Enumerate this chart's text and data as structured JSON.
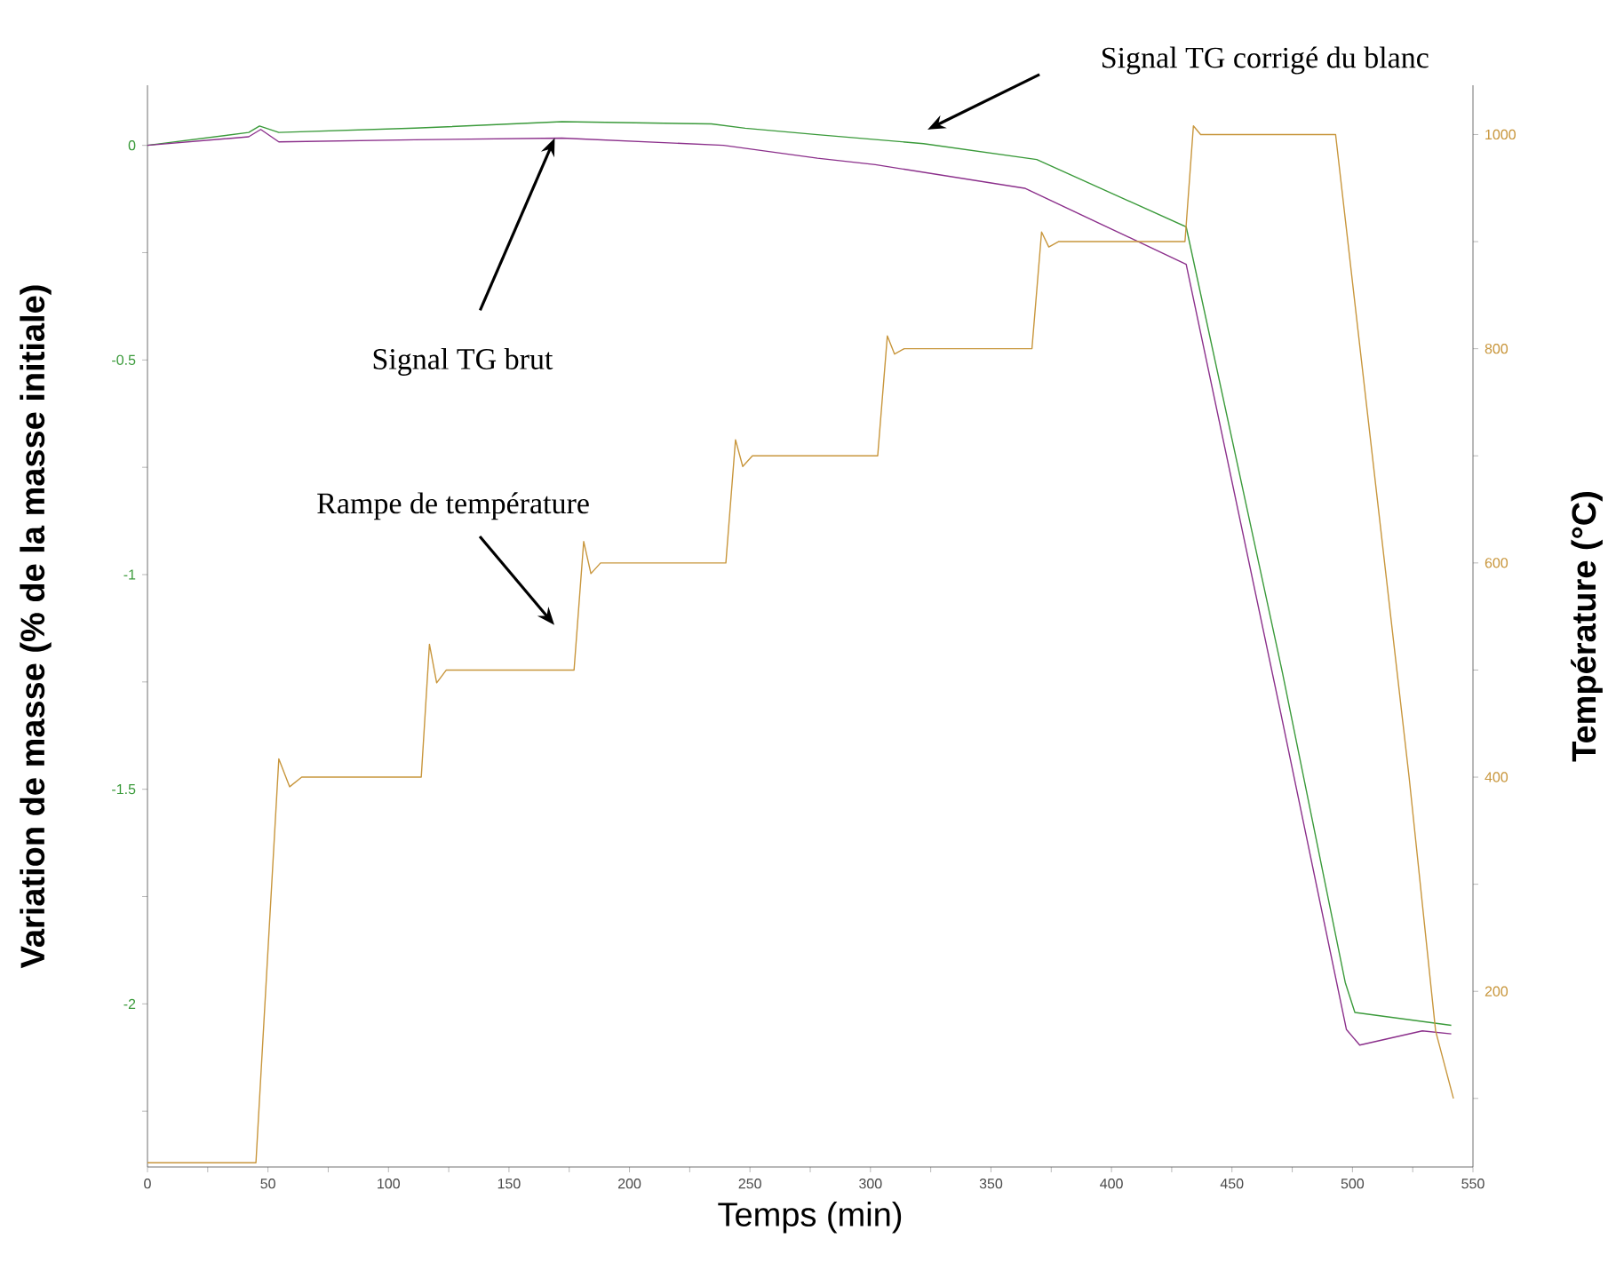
{
  "chart_data": {
    "type": "line",
    "xlabel": "Temps (min)",
    "ylabel": "Variation de masse (% de la masse initiale)",
    "y2label": "Température (°C)",
    "xlim": [
      0,
      550
    ],
    "ylim": [
      -2.38,
      0.14
    ],
    "y2lim": [
      36,
      1046
    ],
    "xticks": [
      0,
      {
        "value": 25,
        "label": null
      },
      50,
      {
        "value": 75,
        "label": null
      },
      100,
      {
        "value": 125,
        "label": null
      },
      150,
      {
        "value": 175,
        "label": null
      },
      200,
      {
        "value": 225,
        "label": null
      },
      250,
      {
        "value": 275,
        "label": null
      },
      300,
      {
        "value": 325,
        "label": null
      },
      350,
      {
        "value": 375,
        "label": null
      },
      400,
      {
        "value": 425,
        "label": null
      },
      450,
      {
        "value": 475,
        "label": null
      },
      500,
      {
        "value": 525,
        "label": null
      },
      550
    ],
    "yticks": [
      {
        "value": -2.25,
        "label": null
      },
      -2,
      {
        "value": -1.75,
        "label": null
      },
      -1.5,
      {
        "value": -1.25,
        "label": null
      },
      -1,
      {
        "value": -0.75,
        "label": null
      },
      -0.5,
      {
        "value": -0.25,
        "label": null
      },
      0
    ],
    "y2ticks": [
      {
        "value": 100,
        "label": null
      },
      200,
      {
        "value": 300,
        "label": null
      },
      400,
      {
        "value": 500,
        "label": null
      },
      600,
      {
        "value": 700,
        "label": null
      },
      800,
      {
        "value": 900,
        "label": null
      },
      1000
    ],
    "series": [
      {
        "color": "#3a9a3a",
        "axis": "y",
        "x": [
          0,
          42,
          46.5,
          54.5,
          111,
          172,
          234,
          248,
          278,
          322,
          369,
          431,
          471,
          497,
          501,
          541
        ],
        "values": [
          0,
          0.03,
          0.045,
          0.03,
          0.04,
          0.055,
          0.05,
          0.04,
          0.025,
          0.004,
          -0.033,
          -0.19,
          -1.23,
          -1.95,
          -2.02,
          -2.05
        ]
      },
      {
        "color": "#8b2f8b",
        "axis": "y",
        "x": [
          0,
          42,
          47,
          54.5,
          111,
          172,
          239,
          278,
          302,
          364,
          431,
          470,
          497.5,
          503,
          529,
          541
        ],
        "values": [
          0,
          0.02,
          0.037,
          0.008,
          0.013,
          0.017,
          0,
          -0.03,
          -0.045,
          -0.1,
          -0.277,
          -1.316,
          -2.06,
          -2.096,
          -2.063,
          -2.07
        ]
      },
      {
        "color": "#c8963c",
        "axis": "y2",
        "x": [
          0,
          45,
          54.5,
          59,
          64,
          113.6,
          117,
          120,
          124,
          177,
          181,
          184,
          188,
          240,
          244,
          247,
          251,
          303,
          307,
          310,
          314,
          367,
          371,
          374,
          378,
          430.5,
          434,
          437,
          493,
          523.5,
          534.5,
          541.9
        ],
        "values": [
          40,
          40,
          417,
          391,
          400,
          400,
          524,
          488,
          500,
          500,
          620,
          590,
          600,
          600,
          715,
          690,
          700,
          700,
          812,
          795,
          800,
          800,
          909,
          895,
          900,
          900,
          1008,
          1000,
          1000,
          400,
          163,
          100
        ]
      }
    ],
    "annotations": [
      "Signal TG corrigé du blanc",
      {
        "text": "Signal TG brut",
        "x": 169,
        "y": 0.017
      },
      "Rampe de température"
    ]
  }
}
